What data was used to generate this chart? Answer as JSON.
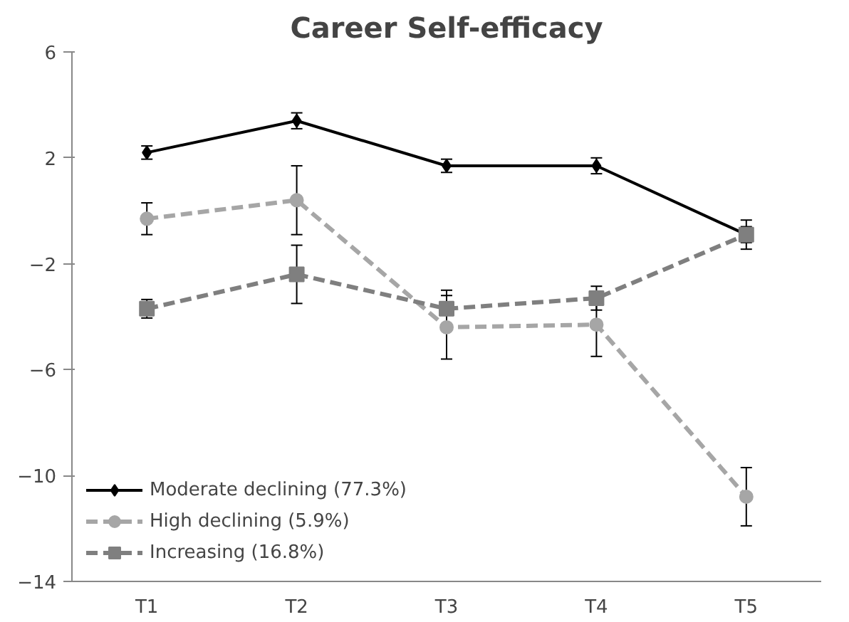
{
  "chart_data": {
    "type": "line",
    "title": "Career Self-efficacy",
    "categories": [
      "T1",
      "T2",
      "T3",
      "T4",
      "T5"
    ],
    "series": [
      {
        "name": "Moderate declining (77.3%)",
        "color": "#000000",
        "marker": "diamond",
        "line_style": "solid",
        "values": [
          2.2,
          3.4,
          1.7,
          1.7,
          -0.9
        ],
        "errors": [
          0.25,
          0.3,
          0.25,
          0.3,
          0.3
        ]
      },
      {
        "name": "High declining (5.9%)",
        "color": "#a6a6a6",
        "marker": "circle",
        "line_style": "dashed",
        "values": [
          -0.3,
          0.4,
          -4.4,
          -4.3,
          -10.8
        ],
        "errors": [
          0.6,
          1.3,
          1.2,
          1.2,
          1.1
        ]
      },
      {
        "name": "Increasing (16.8%)",
        "color": "#7f7f7f",
        "marker": "square",
        "line_style": "dashed",
        "values": [
          -3.7,
          -2.4,
          -3.7,
          -3.3,
          -0.9
        ],
        "errors": [
          0.35,
          1.1,
          0.7,
          0.45,
          0.55
        ]
      }
    ],
    "ylim": [
      -14,
      6
    ],
    "yticks": [
      -14,
      -10,
      -6,
      -2,
      2,
      6
    ],
    "grid": false,
    "legend": "bottom left"
  }
}
